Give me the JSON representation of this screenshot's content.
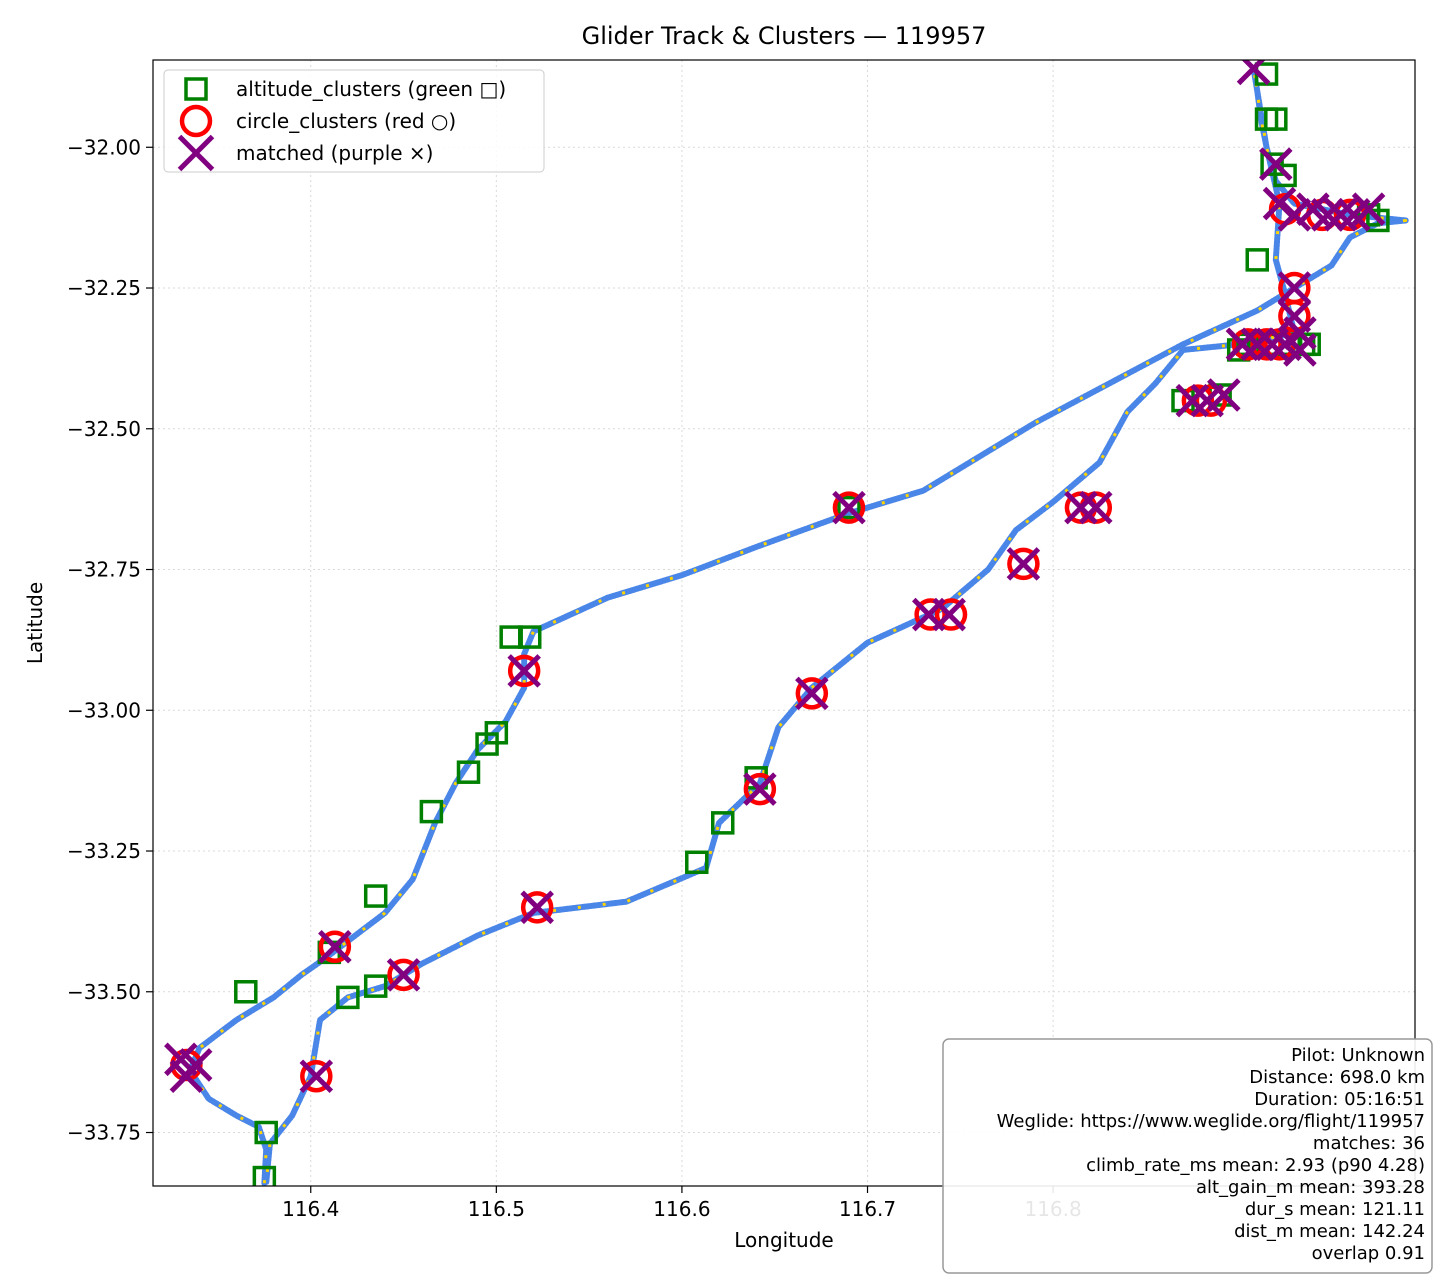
{
  "chart_data": {
    "type": "scatter",
    "title": "Glider Track & Clusters — 119957",
    "xlabel": "Longitude",
    "ylabel": "Latitude",
    "xlim": [
      116.315,
      116.995
    ],
    "ylim": [
      -33.845,
      -31.845
    ],
    "xticks": [
      116.4,
      116.5,
      116.6,
      116.7,
      116.8
    ],
    "xtick_labels": [
      "116.4",
      "116.5",
      "116.6",
      "116.7",
      "116.8"
    ],
    "yticks": [
      -32.0,
      -32.25,
      -32.5,
      -32.75,
      -33.0,
      -33.25,
      -33.5,
      -33.75
    ],
    "ytick_labels": [
      "−32.00",
      "−32.25",
      "−32.50",
      "−32.75",
      "−33.00",
      "−33.25",
      "−33.50",
      "−33.75"
    ],
    "grid": true,
    "legend_position": "top-left",
    "track_color": "#4a86e8",
    "highlight_color": "#ffd500",
    "track": [
      [
        116.375,
        -33.84
      ],
      [
        116.376,
        -33.78
      ],
      [
        116.372,
        -33.74
      ],
      [
        116.36,
        -33.72
      ],
      [
        116.345,
        -33.69
      ],
      [
        116.335,
        -33.64
      ],
      [
        116.34,
        -33.6
      ],
      [
        116.36,
        -33.55
      ],
      [
        116.38,
        -33.51
      ],
      [
        116.395,
        -33.47
      ],
      [
        116.408,
        -33.44
      ],
      [
        116.42,
        -33.41
      ],
      [
        116.44,
        -33.36
      ],
      [
        116.455,
        -33.3
      ],
      [
        116.467,
        -33.2
      ],
      [
        116.478,
        -33.13
      ],
      [
        116.49,
        -33.07
      ],
      [
        116.505,
        -33.02
      ],
      [
        116.515,
        -32.96
      ],
      [
        116.515,
        -32.9
      ],
      [
        116.52,
        -32.86
      ],
      [
        116.56,
        -32.8
      ],
      [
        116.6,
        -32.76
      ],
      [
        116.64,
        -32.71
      ],
      [
        116.69,
        -32.65
      ],
      [
        116.73,
        -32.61
      ],
      [
        116.76,
        -32.55
      ],
      [
        116.79,
        -32.49
      ],
      [
        116.83,
        -32.42
      ],
      [
        116.87,
        -32.35
      ],
      [
        116.91,
        -32.29
      ],
      [
        116.95,
        -32.21
      ],
      [
        116.96,
        -32.16
      ],
      [
        116.975,
        -32.135
      ],
      [
        116.99,
        -32.13
      ],
      [
        116.96,
        -32.12
      ],
      [
        116.93,
        -32.1
      ],
      [
        116.92,
        -32.06
      ],
      [
        116.915,
        -32.0
      ],
      [
        116.912,
        -31.95
      ],
      [
        116.91,
        -31.9
      ],
      [
        116.908,
        -31.86
      ],
      [
        116.915,
        -32.0
      ],
      [
        116.922,
        -32.1
      ],
      [
        116.92,
        -32.2
      ],
      [
        116.925,
        -32.26
      ],
      [
        116.93,
        -32.33
      ],
      [
        116.9,
        -32.35
      ],
      [
        116.87,
        -32.36
      ],
      [
        116.855,
        -32.42
      ],
      [
        116.84,
        -32.47
      ],
      [
        116.825,
        -32.56
      ],
      [
        116.8,
        -32.63
      ],
      [
        116.78,
        -32.68
      ],
      [
        116.765,
        -32.75
      ],
      [
        116.74,
        -32.82
      ],
      [
        116.7,
        -32.88
      ],
      [
        116.67,
        -32.96
      ],
      [
        116.652,
        -33.03
      ],
      [
        116.642,
        -33.13
      ],
      [
        116.62,
        -33.2
      ],
      [
        116.613,
        -33.28
      ],
      [
        116.57,
        -33.34
      ],
      [
        116.52,
        -33.36
      ],
      [
        116.49,
        -33.4
      ],
      [
        116.46,
        -33.45
      ],
      [
        116.44,
        -33.49
      ],
      [
        116.42,
        -33.51
      ],
      [
        116.405,
        -33.55
      ],
      [
        116.4,
        -33.65
      ],
      [
        116.39,
        -33.72
      ],
      [
        116.378,
        -33.77
      ],
      [
        116.376,
        -33.84
      ]
    ],
    "series": [
      {
        "name": "altitude_clusters (green □)",
        "color": "#008000",
        "marker": "square",
        "points": [
          [
            116.375,
            -33.83
          ],
          [
            116.376,
            -33.75
          ],
          [
            116.365,
            -33.5
          ],
          [
            116.42,
            -33.51
          ],
          [
            116.435,
            -33.49
          ],
          [
            116.41,
            -33.43
          ],
          [
            116.435,
            -33.33
          ],
          [
            116.465,
            -33.18
          ],
          [
            116.485,
            -33.11
          ],
          [
            116.495,
            -33.06
          ],
          [
            116.5,
            -33.04
          ],
          [
            116.508,
            -32.87
          ],
          [
            116.518,
            -32.87
          ],
          [
            116.69,
            -32.64
          ],
          [
            116.608,
            -33.27
          ],
          [
            116.622,
            -33.2
          ],
          [
            116.64,
            -33.12
          ],
          [
            116.87,
            -32.45
          ],
          [
            116.89,
            -32.44
          ],
          [
            116.905,
            -32.35
          ],
          [
            116.917,
            -32.35
          ],
          [
            116.928,
            -32.35
          ],
          [
            116.938,
            -32.35
          ],
          [
            116.9,
            -32.36
          ],
          [
            116.935,
            -32.35
          ],
          [
            116.91,
            -32.2
          ],
          [
            116.915,
            -31.87
          ],
          [
            116.915,
            -31.95
          ],
          [
            116.92,
            -31.95
          ],
          [
            116.918,
            -32.03
          ],
          [
            116.925,
            -32.05
          ],
          [
            116.97,
            -32.12
          ],
          [
            116.975,
            -32.13
          ]
        ]
      },
      {
        "name": "circle_clusters (red ○)",
        "color": "#ff0000",
        "marker": "circle",
        "points": [
          [
            116.333,
            -33.63
          ],
          [
            116.403,
            -33.65
          ],
          [
            116.413,
            -33.42
          ],
          [
            116.45,
            -33.47
          ],
          [
            116.522,
            -33.35
          ],
          [
            116.515,
            -32.93
          ],
          [
            116.642,
            -33.14
          ],
          [
            116.67,
            -32.97
          ],
          [
            116.69,
            -32.64
          ],
          [
            116.734,
            -32.83
          ],
          [
            116.745,
            -32.83
          ],
          [
            116.784,
            -32.74
          ],
          [
            116.815,
            -32.64
          ],
          [
            116.823,
            -32.64
          ],
          [
            116.878,
            -32.45
          ],
          [
            116.885,
            -32.45
          ],
          [
            116.905,
            -32.35
          ],
          [
            116.915,
            -32.35
          ],
          [
            116.922,
            -32.35
          ],
          [
            116.93,
            -32.25
          ],
          [
            116.93,
            -32.3
          ],
          [
            116.925,
            -32.11
          ],
          [
            116.945,
            -32.12
          ],
          [
            116.96,
            -32.12
          ]
        ]
      },
      {
        "name": "matched (purple ×)",
        "color": "#800080",
        "marker": "x",
        "points": [
          [
            116.33,
            -33.62
          ],
          [
            116.338,
            -33.63
          ],
          [
            116.333,
            -33.65
          ],
          [
            116.403,
            -33.65
          ],
          [
            116.413,
            -33.42
          ],
          [
            116.45,
            -33.47
          ],
          [
            116.522,
            -33.35
          ],
          [
            116.515,
            -32.93
          ],
          [
            116.642,
            -33.14
          ],
          [
            116.67,
            -32.97
          ],
          [
            116.69,
            -32.64
          ],
          [
            116.733,
            -32.83
          ],
          [
            116.744,
            -32.83
          ],
          [
            116.784,
            -32.74
          ],
          [
            116.815,
            -32.64
          ],
          [
            116.823,
            -32.64
          ],
          [
            116.875,
            -32.45
          ],
          [
            116.883,
            -32.45
          ],
          [
            116.892,
            -32.44
          ],
          [
            116.902,
            -32.35
          ],
          [
            116.91,
            -32.35
          ],
          [
            116.918,
            -32.35
          ],
          [
            116.925,
            -32.35
          ],
          [
            116.933,
            -32.36
          ],
          [
            116.93,
            -32.25
          ],
          [
            116.93,
            -32.3
          ],
          [
            116.933,
            -32.33
          ],
          [
            116.922,
            -32.1
          ],
          [
            116.93,
            -32.12
          ],
          [
            116.94,
            -32.11
          ],
          [
            116.948,
            -32.12
          ],
          [
            116.955,
            -32.12
          ],
          [
            116.962,
            -32.12
          ],
          [
            116.97,
            -32.11
          ],
          [
            116.908,
            -31.86
          ],
          [
            116.92,
            -32.03
          ]
        ]
      }
    ],
    "legend": [
      {
        "label": "altitude_clusters (green □)",
        "marker": "square",
        "color": "#008000"
      },
      {
        "label": "circle_clusters (red ○)",
        "marker": "circle",
        "color": "#ff0000"
      },
      {
        "label": "matched (purple ×)",
        "marker": "x",
        "color": "#800080"
      }
    ],
    "info_box": {
      "position": "bottom-right",
      "lines": [
        "Pilot: Unknown",
        "Distance: 698.0 km",
        "Duration: 05:16:51",
        "Weglide: https://www.weglide.org/flight/119957",
        "matches: 36",
        "climb_rate_ms mean: 2.93 (p90 4.28)",
        "alt_gain_m mean: 393.28",
        "dur_s mean: 121.11",
        "dist_m mean: 142.24",
        "overlap 0.91"
      ]
    }
  }
}
